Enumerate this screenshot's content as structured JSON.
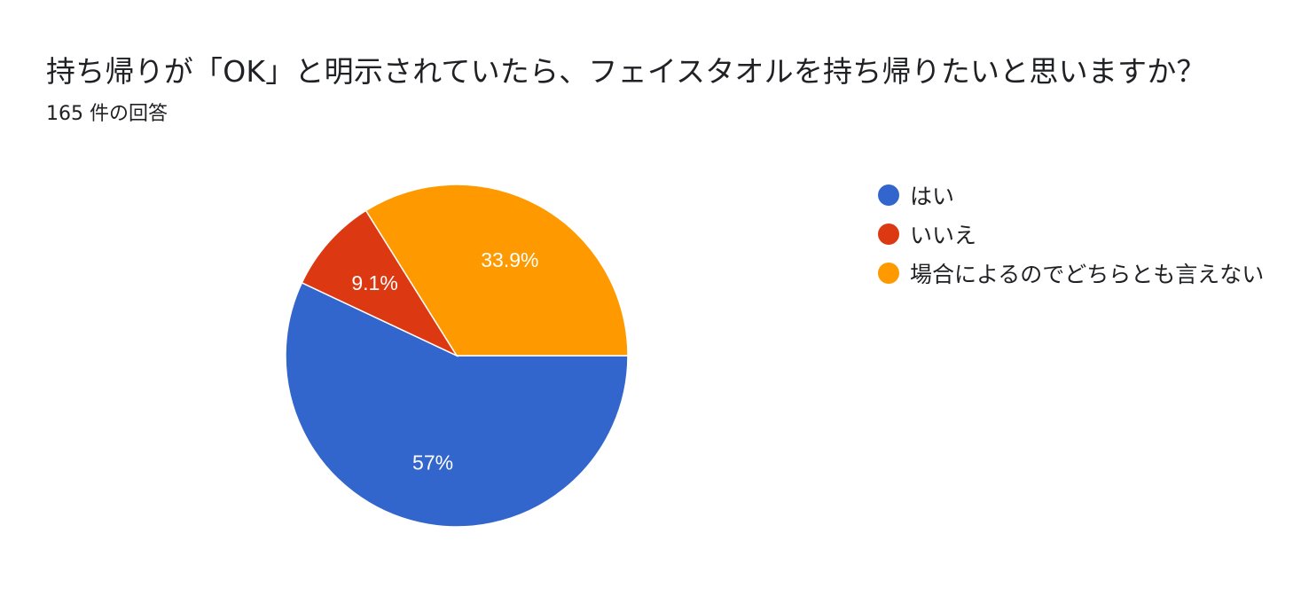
{
  "header": {
    "title": "持ち帰りが「OK」と明示されていたら、フェイスタオルを持ち帰りたいと思いますか？",
    "response_count": "165 件の回答"
  },
  "chart_data": {
    "type": "pie",
    "legend_position": "right",
    "series": [
      {
        "name": "はい",
        "value": 57.0,
        "label": "57%",
        "color": "#3366cc"
      },
      {
        "name": "いいえ",
        "value": 9.1,
        "label": "9.1%",
        "color": "#dc3912"
      },
      {
        "name": "場合によるのでどちらとも言えない",
        "value": 33.9,
        "label": "33.9%",
        "color": "#ff9900"
      }
    ]
  }
}
